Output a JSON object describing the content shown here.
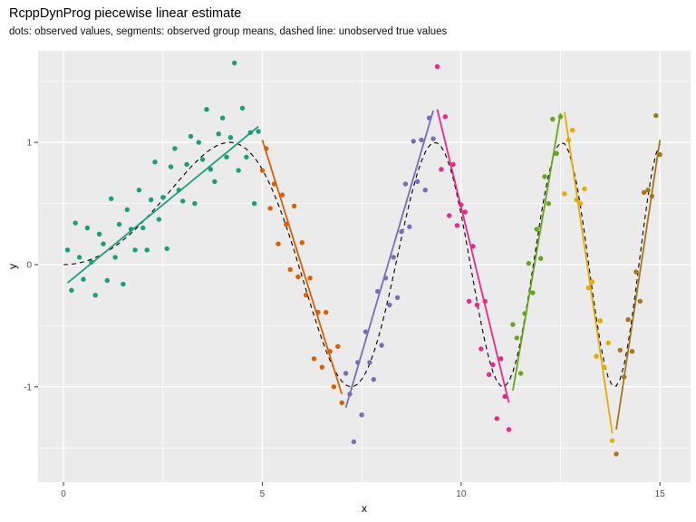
{
  "title": "RcppDynProg piecewise linear estimate",
  "subtitle": "dots: observed values, segments: observed group means, dashed line: unobserved true values",
  "chart_data": {
    "type": "scatter",
    "title": "RcppDynProg piecewise linear estimate",
    "subtitle": "dots: observed values, segments: observed group means, dashed line: unobserved true values",
    "xlabel": "x",
    "ylabel": "y",
    "xlim": [
      -0.64,
      15.77
    ],
    "ylim": [
      -1.78,
      1.75
    ],
    "x_ticks": [
      0,
      5,
      10,
      15
    ],
    "y_ticks": [
      -1,
      0,
      1
    ],
    "x_minor": [
      2.5,
      7.5,
      12.5
    ],
    "y_minor": [
      -1.5,
      -0.5,
      0.5,
      1.5
    ],
    "grid": "on",
    "legend": "none",
    "panel_bg": "#EBEBEB",
    "grid_color": "#FFFFFF",
    "tick_label_color": "#4D4D4D",
    "true_line_color": "#000000",
    "palette": [
      "#1B9E77",
      "#D95F02",
      "#7570B3",
      "#E7298A",
      "#66A61E",
      "#E6AB02",
      "#A6761D"
    ],
    "group_x_ranges": [
      [
        0.1,
        4.9
      ],
      [
        5.0,
        7.0
      ],
      [
        7.1,
        9.3
      ],
      [
        9.4,
        11.2
      ],
      [
        11.3,
        12.5
      ],
      [
        12.6,
        13.8
      ],
      [
        13.9,
        15.0
      ]
    ],
    "segments": [
      [
        0.1,
        -0.15,
        4.9,
        1.13,
        0
      ],
      [
        5.0,
        1.02,
        7.0,
        -1.06,
        1
      ],
      [
        7.1,
        -1.17,
        9.3,
        1.26,
        2
      ],
      [
        9.4,
        1.27,
        11.2,
        -1.13,
        3
      ],
      [
        11.3,
        -1.03,
        12.5,
        1.24,
        4
      ],
      [
        12.6,
        1.25,
        13.8,
        -1.38,
        5
      ],
      [
        13.9,
        -1.35,
        15.0,
        1.02,
        6
      ]
    ],
    "true_curve": [
      [
        0,
        0
      ],
      [
        0.1,
        0.001
      ],
      [
        0.2,
        0.004
      ],
      [
        0.3,
        0.008
      ],
      [
        0.4,
        0.014
      ],
      [
        0.5,
        0.022
      ],
      [
        0.6,
        0.032
      ],
      [
        0.7,
        0.044
      ],
      [
        0.8,
        0.058
      ],
      [
        0.9,
        0.073
      ],
      [
        1.0,
        0.09
      ],
      [
        1.1,
        0.109
      ],
      [
        1.2,
        0.129
      ],
      [
        1.3,
        0.151
      ],
      [
        1.4,
        0.175
      ],
      [
        1.5,
        0.201
      ],
      [
        1.6,
        0.228
      ],
      [
        1.7,
        0.257
      ],
      [
        1.8,
        0.287
      ],
      [
        1.9,
        0.319
      ],
      [
        2.0,
        0.352
      ],
      [
        2.1,
        0.386
      ],
      [
        2.2,
        0.422
      ],
      [
        2.3,
        0.458
      ],
      [
        2.4,
        0.495
      ],
      [
        2.5,
        0.533
      ],
      [
        2.6,
        0.571
      ],
      [
        2.7,
        0.61
      ],
      [
        2.8,
        0.648
      ],
      [
        2.9,
        0.687
      ],
      [
        3.0,
        0.724
      ],
      [
        3.1,
        0.761
      ],
      [
        3.2,
        0.797
      ],
      [
        3.3,
        0.83
      ],
      [
        3.4,
        0.862
      ],
      [
        3.5,
        0.892
      ],
      [
        3.6,
        0.919
      ],
      [
        3.7,
        0.943
      ],
      [
        3.8,
        0.963
      ],
      [
        3.9,
        0.98
      ],
      [
        4.0,
        0.991
      ],
      [
        4.1,
        0.998
      ],
      [
        4.2,
        1.0
      ],
      [
        4.3,
        0.996
      ],
      [
        4.4,
        0.986
      ],
      [
        4.5,
        0.968
      ],
      [
        4.6,
        0.945
      ],
      [
        4.7,
        0.914
      ],
      [
        4.8,
        0.877
      ],
      [
        4.9,
        0.831
      ],
      [
        5.0,
        0.778
      ],
      [
        5.1,
        0.718
      ],
      [
        5.2,
        0.65
      ],
      [
        5.3,
        0.576
      ],
      [
        5.4,
        0.494
      ],
      [
        5.5,
        0.407
      ],
      [
        5.6,
        0.314
      ],
      [
        5.7,
        0.216
      ],
      [
        5.8,
        0.114
      ],
      [
        5.9,
        0.009
      ],
      [
        6.0,
        -0.098
      ],
      [
        6.1,
        -0.206
      ],
      [
        6.2,
        -0.313
      ],
      [
        6.3,
        -0.417
      ],
      [
        6.4,
        -0.518
      ],
      [
        6.5,
        -0.614
      ],
      [
        6.6,
        -0.703
      ],
      [
        6.7,
        -0.782
      ],
      [
        6.8,
        -0.852
      ],
      [
        6.9,
        -0.91
      ],
      [
        7.0,
        -0.955
      ],
      [
        7.1,
        -0.985
      ],
      [
        7.2,
        -0.999
      ],
      [
        7.3,
        -0.996
      ],
      [
        7.4,
        -0.977
      ],
      [
        7.5,
        -0.939
      ],
      [
        7.6,
        -0.884
      ],
      [
        7.7,
        -0.812
      ],
      [
        7.8,
        -0.723
      ],
      [
        7.9,
        -0.618
      ],
      [
        8.0,
        -0.5
      ],
      [
        8.1,
        -0.369
      ],
      [
        8.2,
        -0.23
      ],
      [
        8.3,
        -0.083
      ],
      [
        8.4,
        0.067
      ],
      [
        8.5,
        0.218
      ],
      [
        8.6,
        0.365
      ],
      [
        8.7,
        0.505
      ],
      [
        8.8,
        0.634
      ],
      [
        8.9,
        0.749
      ],
      [
        9.0,
        0.846
      ],
      [
        9.1,
        0.921
      ],
      [
        9.2,
        0.972
      ],
      [
        9.3,
        0.998
      ],
      [
        9.4,
        0.995
      ],
      [
        9.5,
        0.964
      ],
      [
        9.6,
        0.905
      ],
      [
        9.7,
        0.818
      ],
      [
        9.8,
        0.704
      ],
      [
        9.9,
        0.568
      ],
      [
        10.0,
        0.412
      ],
      [
        10.1,
        0.242
      ],
      [
        10.2,
        0.061
      ],
      [
        10.3,
        -0.123
      ],
      [
        10.4,
        -0.305
      ],
      [
        10.5,
        -0.477
      ],
      [
        10.6,
        -0.635
      ],
      [
        10.7,
        -0.771
      ],
      [
        10.8,
        -0.879
      ],
      [
        10.9,
        -0.955
      ],
      [
        11.0,
        -0.994
      ],
      [
        11.1,
        -0.996
      ],
      [
        11.2,
        -0.957
      ],
      [
        11.3,
        -0.879
      ],
      [
        11.4,
        -0.764
      ],
      [
        11.5,
        -0.616
      ],
      [
        11.6,
        -0.44
      ],
      [
        11.7,
        -0.244
      ],
      [
        11.8,
        -0.035
      ],
      [
        11.9,
        0.178
      ],
      [
        12.0,
        0.384
      ],
      [
        12.1,
        0.573
      ],
      [
        12.2,
        0.737
      ],
      [
        12.3,
        0.867
      ],
      [
        12.4,
        0.956
      ],
      [
        12.5,
        0.997
      ],
      [
        12.6,
        0.989
      ],
      [
        12.7,
        0.929
      ],
      [
        12.8,
        0.821
      ],
      [
        12.9,
        0.668
      ],
      [
        13.0,
        0.478
      ],
      [
        13.1,
        0.26
      ],
      [
        13.2,
        0.026
      ],
      [
        13.3,
        -0.211
      ],
      [
        13.4,
        -0.437
      ],
      [
        13.5,
        -0.64
      ],
      [
        13.6,
        -0.807
      ],
      [
        13.7,
        -0.926
      ],
      [
        13.8,
        -0.99
      ],
      [
        13.9,
        -0.994
      ],
      [
        14.0,
        -0.936
      ],
      [
        14.1,
        -0.818
      ],
      [
        14.2,
        -0.646
      ],
      [
        14.3,
        -0.431
      ],
      [
        14.4,
        -0.186
      ],
      [
        14.5,
        0.073
      ],
      [
        14.6,
        0.329
      ],
      [
        14.7,
        0.563
      ],
      [
        14.8,
        0.761
      ],
      [
        14.9,
        0.905
      ],
      [
        15.0,
        0.986
      ]
    ],
    "points": [
      [
        0.1,
        0.12,
        0
      ],
      [
        0.2,
        -0.21,
        0
      ],
      [
        0.3,
        0.34,
        0
      ],
      [
        0.4,
        0.06,
        0
      ],
      [
        0.5,
        -0.12,
        0
      ],
      [
        0.6,
        0.3,
        0
      ],
      [
        0.7,
        0.02,
        0
      ],
      [
        0.8,
        -0.25,
        0
      ],
      [
        0.9,
        0.25,
        0
      ],
      [
        1.0,
        0.17,
        0
      ],
      [
        1.1,
        -0.13,
        0
      ],
      [
        1.2,
        0.54,
        0
      ],
      [
        1.3,
        0.06,
        0
      ],
      [
        1.4,
        0.33,
        0
      ],
      [
        1.5,
        -0.16,
        0
      ],
      [
        1.6,
        0.45,
        0
      ],
      [
        1.7,
        0.29,
        0
      ],
      [
        1.8,
        0.12,
        0
      ],
      [
        1.9,
        0.61,
        0
      ],
      [
        2.0,
        0.3,
        0
      ],
      [
        2.1,
        0.12,
        0
      ],
      [
        2.2,
        0.53,
        0
      ],
      [
        2.3,
        0.84,
        0
      ],
      [
        2.4,
        0.37,
        0
      ],
      [
        2.5,
        0.55,
        0
      ],
      [
        2.6,
        0.13,
        0
      ],
      [
        2.7,
        0.8,
        0
      ],
      [
        2.8,
        0.95,
        0
      ],
      [
        2.9,
        0.61,
        0
      ],
      [
        3.0,
        0.52,
        0
      ],
      [
        3.1,
        0.82,
        0
      ],
      [
        3.2,
        1.05,
        0
      ],
      [
        3.3,
        0.5,
        0
      ],
      [
        3.4,
        1.0,
        0
      ],
      [
        3.5,
        0.86,
        0
      ],
      [
        3.6,
        1.27,
        0
      ],
      [
        3.7,
        0.78,
        0
      ],
      [
        3.8,
        0.68,
        0
      ],
      [
        3.9,
        1.07,
        0
      ],
      [
        4.0,
        1.2,
        0
      ],
      [
        4.1,
        0.88,
        0
      ],
      [
        4.2,
        1.04,
        0
      ],
      [
        4.3,
        1.65,
        0
      ],
      [
        4.4,
        0.77,
        0
      ],
      [
        4.5,
        1.28,
        0
      ],
      [
        4.6,
        0.88,
        0
      ],
      [
        4.7,
        1.08,
        0
      ],
      [
        4.8,
        0.5,
        0
      ],
      [
        4.9,
        1.09,
        0
      ],
      [
        5.0,
        0.77,
        1
      ],
      [
        5.1,
        0.95,
        1
      ],
      [
        5.2,
        0.46,
        1
      ],
      [
        5.3,
        0.66,
        1
      ],
      [
        5.4,
        0.17,
        1
      ],
      [
        5.5,
        0.57,
        1
      ],
      [
        5.6,
        0.33,
        1
      ],
      [
        5.7,
        -0.04,
        1
      ],
      [
        5.8,
        0.48,
        1
      ],
      [
        5.9,
        -0.1,
        1
      ],
      [
        6.0,
        0.18,
        1
      ],
      [
        6.1,
        -0.25,
        1
      ],
      [
        6.2,
        -0.11,
        1
      ],
      [
        6.3,
        -0.77,
        1
      ],
      [
        6.4,
        -0.39,
        1
      ],
      [
        6.5,
        -0.84,
        1
      ],
      [
        6.6,
        -0.39,
        1
      ],
      [
        6.7,
        -0.71,
        1
      ],
      [
        6.8,
        -1.0,
        1
      ],
      [
        6.9,
        -0.67,
        1
      ],
      [
        7.0,
        -1.13,
        1
      ],
      [
        7.1,
        -0.89,
        2
      ],
      [
        7.2,
        -1.06,
        2
      ],
      [
        7.3,
        -1.45,
        2
      ],
      [
        7.4,
        -0.8,
        2
      ],
      [
        7.5,
        -1.23,
        2
      ],
      [
        7.6,
        -0.55,
        2
      ],
      [
        7.7,
        -0.8,
        2
      ],
      [
        7.8,
        -0.94,
        2
      ],
      [
        7.9,
        -0.22,
        2
      ],
      [
        8.0,
        -0.66,
        2
      ],
      [
        8.1,
        -0.11,
        2
      ],
      [
        8.2,
        -0.33,
        2
      ],
      [
        8.3,
        0.06,
        2
      ],
      [
        8.4,
        -0.27,
        2
      ],
      [
        8.5,
        0.27,
        2
      ],
      [
        8.6,
        0.66,
        2
      ],
      [
        8.7,
        0.31,
        2
      ],
      [
        8.8,
        1.01,
        2
      ],
      [
        8.9,
        0.68,
        2
      ],
      [
        9.0,
        1.02,
        2
      ],
      [
        9.1,
        0.61,
        2
      ],
      [
        9.2,
        1.2,
        2
      ],
      [
        9.3,
        1.03,
        2
      ],
      [
        9.4,
        1.62,
        3
      ],
      [
        9.5,
        0.78,
        3
      ],
      [
        9.6,
        1.21,
        3
      ],
      [
        9.7,
        0.4,
        3
      ],
      [
        9.8,
        0.82,
        3
      ],
      [
        9.9,
        0.32,
        3
      ],
      [
        10.0,
        0.49,
        3
      ],
      [
        10.1,
        0.43,
        3
      ],
      [
        10.2,
        -0.3,
        3
      ],
      [
        10.3,
        0.15,
        3
      ],
      [
        10.4,
        -0.33,
        3
      ],
      [
        10.5,
        -0.69,
        3
      ],
      [
        10.6,
        -0.3,
        3
      ],
      [
        10.7,
        -0.9,
        3
      ],
      [
        10.8,
        -0.82,
        3
      ],
      [
        10.9,
        -1.26,
        3
      ],
      [
        11.0,
        -0.77,
        3
      ],
      [
        11.1,
        -1.08,
        3
      ],
      [
        11.2,
        -1.35,
        3
      ],
      [
        11.3,
        -0.49,
        4
      ],
      [
        11.4,
        -0.6,
        4
      ],
      [
        11.5,
        -0.89,
        4
      ],
      [
        11.6,
        -0.4,
        4
      ],
      [
        11.7,
        0.01,
        4
      ],
      [
        11.8,
        -0.23,
        4
      ],
      [
        11.9,
        0.29,
        4
      ],
      [
        12.0,
        0.05,
        4
      ],
      [
        12.1,
        0.72,
        4
      ],
      [
        12.2,
        0.5,
        4
      ],
      [
        12.3,
        1.19,
        4
      ],
      [
        12.4,
        0.91,
        4
      ],
      [
        12.5,
        1.21,
        4
      ],
      [
        12.6,
        0.58,
        5
      ],
      [
        12.7,
        1.02,
        5
      ],
      [
        12.8,
        1.1,
        5
      ],
      [
        12.9,
        0.53,
        5
      ],
      [
        13.0,
        0.5,
        5
      ],
      [
        13.1,
        0.62,
        5
      ],
      [
        13.2,
        -0.19,
        5
      ],
      [
        13.3,
        -0.14,
        5
      ],
      [
        13.4,
        -0.75,
        5
      ],
      [
        13.5,
        -0.46,
        5
      ],
      [
        13.6,
        -0.84,
        5
      ],
      [
        13.7,
        -0.64,
        5
      ],
      [
        13.8,
        -1.44,
        5
      ],
      [
        13.9,
        -1.55,
        6
      ],
      [
        14.0,
        -0.7,
        6
      ],
      [
        14.1,
        -0.92,
        6
      ],
      [
        14.2,
        -0.45,
        6
      ],
      [
        14.3,
        -0.71,
        6
      ],
      [
        14.4,
        -0.06,
        6
      ],
      [
        14.5,
        -0.3,
        6
      ],
      [
        14.6,
        0.59,
        6
      ],
      [
        14.7,
        0.61,
        6
      ],
      [
        14.8,
        0.56,
        6
      ],
      [
        14.9,
        1.22,
        6
      ],
      [
        15.0,
        0.9,
        6
      ]
    ]
  }
}
